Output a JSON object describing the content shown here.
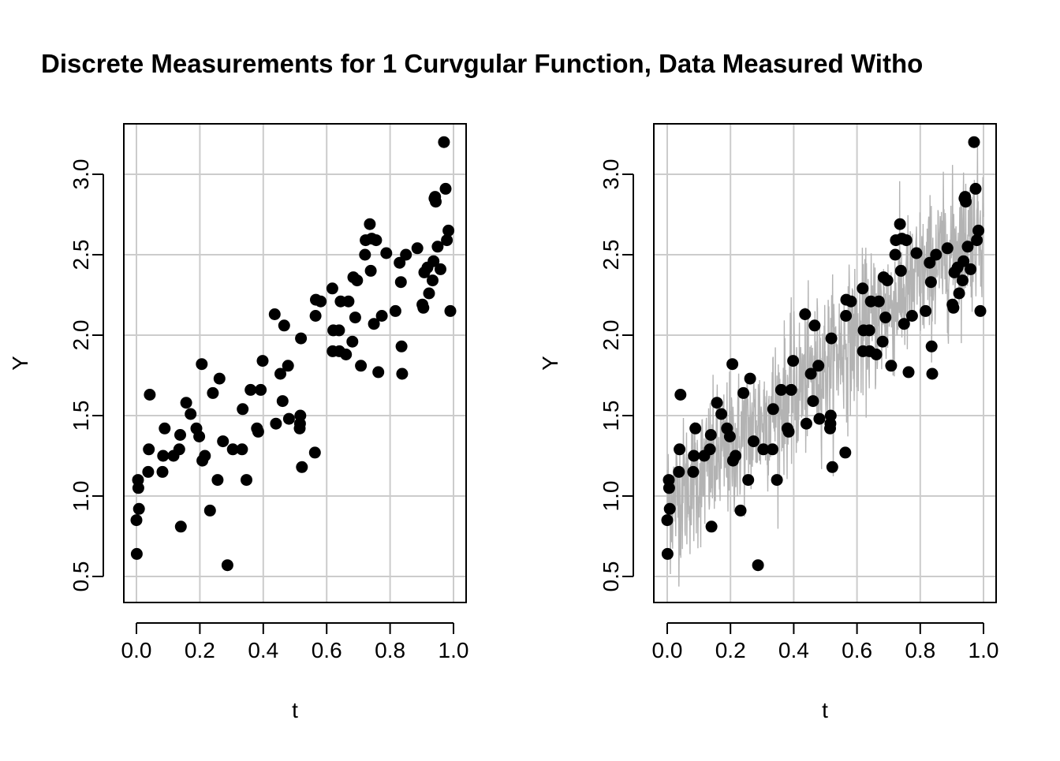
{
  "title": "Discrete Measurements for 1 Curvgular Function, Data Measured Witho",
  "chart_data": [
    {
      "type": "scatter",
      "xlabel": "t",
      "ylabel": "Y",
      "xlim": [
        0,
        1
      ],
      "ylim": [
        0.5,
        3.25
      ],
      "xticks": [
        "0.0",
        "0.2",
        "0.4",
        "0.6",
        "0.8",
        "1.0"
      ],
      "yticks": [
        "0.5",
        "1.0",
        "1.5",
        "2.0",
        "2.5",
        "3.0"
      ],
      "grid": true,
      "point_color": "#000000",
      "points": [
        [
          0.0,
          0.85
        ],
        [
          0.001,
          0.64
        ],
        [
          0.005,
          1.1
        ],
        [
          0.006,
          1.05
        ],
        [
          0.008,
          0.92
        ],
        [
          0.037,
          1.15
        ],
        [
          0.039,
          1.29
        ],
        [
          0.042,
          1.63
        ],
        [
          0.082,
          1.15
        ],
        [
          0.084,
          1.25
        ],
        [
          0.089,
          1.42
        ],
        [
          0.117,
          1.25
        ],
        [
          0.135,
          1.29
        ],
        [
          0.138,
          1.38
        ],
        [
          0.14,
          0.81
        ],
        [
          0.157,
          1.58
        ],
        [
          0.171,
          1.51
        ],
        [
          0.189,
          1.42
        ],
        [
          0.198,
          1.37
        ],
        [
          0.206,
          1.82
        ],
        [
          0.208,
          1.22
        ],
        [
          0.216,
          1.25
        ],
        [
          0.232,
          0.91
        ],
        [
          0.241,
          1.64
        ],
        [
          0.256,
          1.1
        ],
        [
          0.262,
          1.73
        ],
        [
          0.273,
          1.34
        ],
        [
          0.287,
          0.57
        ],
        [
          0.304,
          1.29
        ],
        [
          0.333,
          1.29
        ],
        [
          0.335,
          1.54
        ],
        [
          0.347,
          1.1
        ],
        [
          0.36,
          1.66
        ],
        [
          0.38,
          1.42
        ],
        [
          0.384,
          1.4
        ],
        [
          0.392,
          1.66
        ],
        [
          0.398,
          1.84
        ],
        [
          0.436,
          2.13
        ],
        [
          0.44,
          1.45
        ],
        [
          0.454,
          1.76
        ],
        [
          0.461,
          1.59
        ],
        [
          0.466,
          2.06
        ],
        [
          0.478,
          1.81
        ],
        [
          0.481,
          1.48
        ],
        [
          0.515,
          1.42
        ],
        [
          0.516,
          1.45
        ],
        [
          0.517,
          1.5
        ],
        [
          0.519,
          1.98
        ],
        [
          0.522,
          1.18
        ],
        [
          0.563,
          1.27
        ],
        [
          0.565,
          2.12
        ],
        [
          0.566,
          2.22
        ],
        [
          0.581,
          2.21
        ],
        [
          0.618,
          2.29
        ],
        [
          0.619,
          1.9
        ],
        [
          0.621,
          2.03
        ],
        [
          0.639,
          2.03
        ],
        [
          0.64,
          1.9
        ],
        [
          0.644,
          2.21
        ],
        [
          0.661,
          1.88
        ],
        [
          0.669,
          2.21
        ],
        [
          0.681,
          1.96
        ],
        [
          0.684,
          2.36
        ],
        [
          0.69,
          2.11
        ],
        [
          0.696,
          2.34
        ],
        [
          0.708,
          1.81
        ],
        [
          0.721,
          2.5
        ],
        [
          0.723,
          2.59
        ],
        [
          0.736,
          2.69
        ],
        [
          0.739,
          2.4
        ],
        [
          0.742,
          2.6
        ],
        [
          0.749,
          2.07
        ],
        [
          0.756,
          2.59
        ],
        [
          0.763,
          1.77
        ],
        [
          0.774,
          2.12
        ],
        [
          0.788,
          2.51
        ],
        [
          0.817,
          2.15
        ],
        [
          0.83,
          2.45
        ],
        [
          0.834,
          2.33
        ],
        [
          0.836,
          1.93
        ],
        [
          0.838,
          1.76
        ],
        [
          0.85,
          2.5
        ],
        [
          0.886,
          2.54
        ],
        [
          0.902,
          2.19
        ],
        [
          0.905,
          2.17
        ],
        [
          0.908,
          2.39
        ],
        [
          0.918,
          2.42
        ],
        [
          0.923,
          2.26
        ],
        [
          0.934,
          2.34
        ],
        [
          0.937,
          2.46
        ],
        [
          0.94,
          2.85
        ],
        [
          0.942,
          2.86
        ],
        [
          0.944,
          2.83
        ],
        [
          0.95,
          2.55
        ],
        [
          0.959,
          2.41
        ],
        [
          0.97,
          3.2
        ],
        [
          0.975,
          2.91
        ],
        [
          0.979,
          2.59
        ],
        [
          0.984,
          2.65
        ],
        [
          0.99,
          2.15
        ]
      ]
    },
    {
      "type": "scatter",
      "xlabel": "t",
      "ylabel": "Y",
      "xlim": [
        0,
        1
      ],
      "ylim": [
        0.5,
        3.25
      ],
      "xticks": [
        "0.0",
        "0.2",
        "0.4",
        "0.6",
        "0.8",
        "1.0"
      ],
      "yticks": [
        "0.5",
        "1.0",
        "1.5",
        "2.0",
        "2.5",
        "3.0"
      ],
      "grid": true,
      "point_color": "#000000",
      "curve_color": "#b3b3b3",
      "curve_trend": {
        "t": [
          0,
          0.2,
          0.4,
          0.6,
          0.8,
          1.0
        ],
        "y": [
          0.95,
          1.3,
          1.65,
          2.0,
          2.35,
          2.7
        ]
      },
      "same_points_as_left_panel": true
    }
  ]
}
